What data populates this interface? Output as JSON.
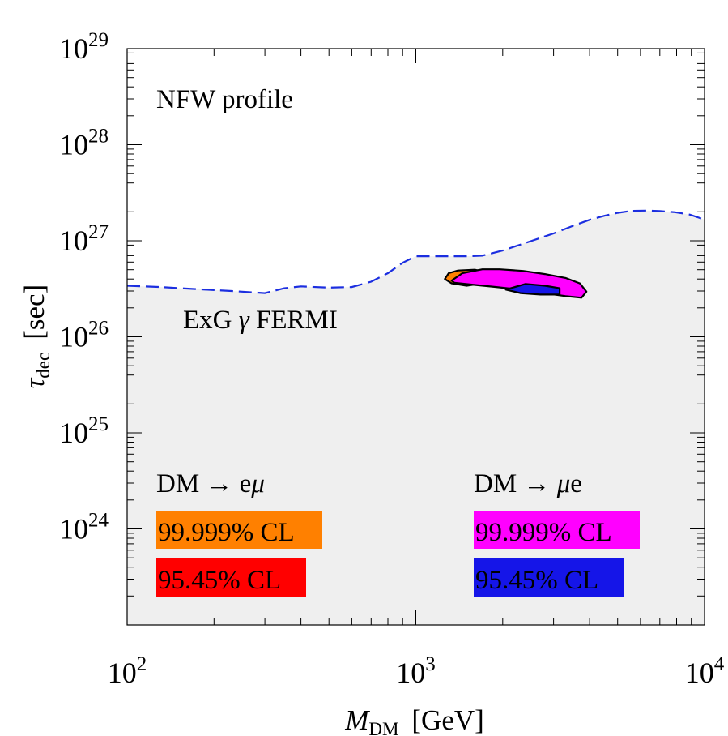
{
  "chart_data": {
    "type": "area",
    "x_scale": "log",
    "y_scale": "log",
    "xlim": [
      100,
      10000
    ],
    "ylim": [
      1e+23,
      1e+29
    ],
    "xlabel": {
      "main": "M",
      "sub": "DM",
      "unit": "[GeV]"
    },
    "ylabel": {
      "main": "τ",
      "sub": "dec",
      "unit": "[sec]"
    },
    "x_ticks": [
      {
        "value": 100,
        "base": "10",
        "exp": "2"
      },
      {
        "value": 1000,
        "base": "10",
        "exp": "3"
      },
      {
        "value": 10000,
        "base": "10",
        "exp": "4"
      }
    ],
    "y_ticks": [
      {
        "value": 1e+24,
        "base": "10",
        "exp": "24"
      },
      {
        "value": 1e+25,
        "base": "10",
        "exp": "25"
      },
      {
        "value": 1e+26,
        "base": "10",
        "exp": "26"
      },
      {
        "value": 1e+27,
        "base": "10",
        "exp": "27"
      },
      {
        "value": 1e+28,
        "base": "10",
        "exp": "28"
      },
      {
        "value": 1e+29,
        "base": "10",
        "exp": "29"
      }
    ],
    "profile_label": "NFW profile",
    "excluded_region": {
      "name": "ExG γ FERMI",
      "label_parts": {
        "prefix": "ExG ",
        "symbol": "γ",
        "suffix": " FERMI"
      },
      "fill": "#efefef",
      "line_color": "#1b2ee0",
      "boundary": {
        "x": [
          100,
          130,
          170,
          230,
          300,
          350,
          400,
          500,
          600,
          700,
          800,
          900,
          1000,
          1150,
          1300,
          1500,
          1700,
          2000,
          2500,
          3000,
          3500,
          4000,
          4500,
          5000,
          5600,
          6300,
          7000,
          7900,
          8900,
          10000
        ],
        "y": [
          3.4e+26,
          3.3e+26,
          3.15e+26,
          3e+26,
          2.85e+26,
          3.2e+26,
          3.35e+26,
          3.25e+26,
          3.3e+26,
          3.75e+26,
          4.6e+26,
          5.9e+26,
          6.9e+26,
          6.9e+26,
          6.9e+26,
          6.9e+26,
          7e+26,
          7.9e+26,
          9.9e+26,
          1.19e+27,
          1.43e+27,
          1.65e+27,
          1.82e+27,
          1.95e+27,
          2.05e+27,
          2.06e+27,
          2.04e+27,
          1.98e+27,
          1.87e+27,
          1.66e+27
        ]
      }
    },
    "fit_regions": [
      {
        "name": "DM → eμ 99.999% CL",
        "color": "#ff8000",
        "x": [
          1260,
          1300,
          1400,
          1600,
          1800,
          1800,
          1500,
          1330,
          1260
        ],
        "y": [
          4e+26,
          4.6e+26,
          4.9e+26,
          5e+26,
          4.6e+26,
          3.7e+26,
          3.4e+26,
          3.6e+26,
          4e+26
        ]
      },
      {
        "name": "DM → μe 99.999% CL",
        "color": "#ff00ff",
        "x": [
          1330,
          1450,
          1700,
          1950,
          2350,
          2800,
          3300,
          3700,
          3900,
          3750,
          3300,
          2900,
          2400,
          1900,
          1550,
          1360,
          1330
        ],
        "y": [
          3.85e+26,
          4.6e+26,
          5.05e+26,
          5.05e+26,
          4.85e+26,
          4.5e+26,
          4.1e+26,
          3.6e+26,
          2.95e+26,
          2.55e+26,
          2.65e+26,
          2.8e+26,
          3.05e+26,
          3.3e+26,
          3.5e+26,
          3.65e+26,
          3.85e+26
        ]
      },
      {
        "name": "DM → μe 95.45% CL",
        "color": "#1515e8",
        "x": [
          2050,
          2400,
          2800,
          3150,
          3150,
          2700,
          2300,
          2050
        ],
        "y": [
          3.1e+26,
          3.55e+26,
          3.4e+26,
          3.2e+26,
          2.75e+26,
          2.75e+26,
          2.85e+26,
          3.1e+26
        ]
      }
    ],
    "legend": [
      {
        "title": {
          "prefix": "DM → e",
          "symbol": "μ",
          "suffix": ""
        },
        "entries": [
          {
            "label": "99.999% CL",
            "color": "#ff8000"
          },
          {
            "label": "95.45% CL",
            "color": "#ff0000"
          }
        ]
      },
      {
        "title": {
          "prefix": "DM → ",
          "symbol": "μ",
          "suffix": "e"
        },
        "entries": [
          {
            "label": "99.999% CL",
            "color": "#ff00ff"
          },
          {
            "label": "95.45% CL",
            "color": "#1515e8"
          }
        ]
      }
    ]
  }
}
